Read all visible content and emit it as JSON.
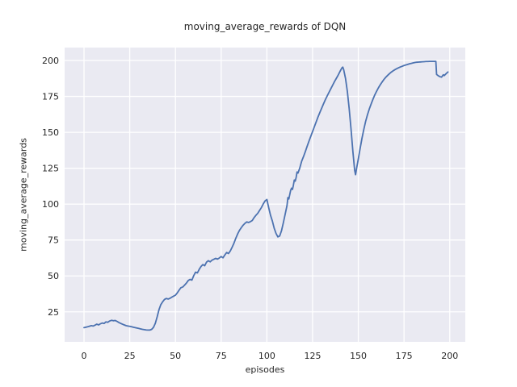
{
  "figure": {
    "title": "moving_average_rewards of DQN",
    "colors": {
      "line": "#4C72B0",
      "plot_background": "#EAEAF2",
      "grid": "#FFFFFF",
      "text": "#262626",
      "figure_background": "#FFFFFF"
    }
  },
  "chart_data": {
    "type": "line",
    "title": "moving_average_rewards of DQN",
    "xlabel": "episodes",
    "ylabel": "moving_average_rewards",
    "xlim": [
      -10.6,
      208.5
    ],
    "ylim": [
      4.1,
      209.0
    ],
    "xticks": [
      0,
      25,
      50,
      75,
      100,
      125,
      150,
      175,
      200
    ],
    "yticks": [
      25,
      50,
      75,
      100,
      125,
      150,
      175,
      200
    ],
    "grid": true,
    "legend_position": "none",
    "series": [
      {
        "name": "moving_average_rewards",
        "color": "#4C72B0",
        "points": [
          [
            0,
            14.0
          ],
          [
            1,
            14.3
          ],
          [
            2,
            14.6
          ],
          [
            3,
            15.0
          ],
          [
            4,
            15.4
          ],
          [
            5,
            15.1
          ],
          [
            6,
            15.7
          ],
          [
            7,
            16.4
          ],
          [
            8,
            15.9
          ],
          [
            9,
            16.7
          ],
          [
            10,
            17.2
          ],
          [
            11,
            16.9
          ],
          [
            12,
            18.0
          ],
          [
            13,
            17.7
          ],
          [
            14,
            18.6
          ],
          [
            15,
            19.1
          ],
          [
            16,
            18.8
          ],
          [
            17,
            19.0
          ],
          [
            18,
            18.4
          ],
          [
            19,
            17.6
          ],
          [
            20,
            17.0
          ],
          [
            21,
            16.4
          ],
          [
            22,
            15.9
          ],
          [
            23,
            15.4
          ],
          [
            24,
            15.1
          ],
          [
            25,
            14.9
          ],
          [
            26,
            14.6
          ],
          [
            27,
            14.3
          ],
          [
            28,
            14.0
          ],
          [
            29,
            13.7
          ],
          [
            30,
            13.4
          ],
          [
            31,
            13.1
          ],
          [
            32,
            12.8
          ],
          [
            33,
            12.6
          ],
          [
            34,
            12.4
          ],
          [
            35,
            12.3
          ],
          [
            36,
            12.3
          ],
          [
            37,
            12.8
          ],
          [
            38,
            14.2
          ],
          [
            39,
            17.0
          ],
          [
            40,
            21.5
          ],
          [
            41,
            26.5
          ],
          [
            42,
            30.0
          ],
          [
            43,
            32.0
          ],
          [
            44,
            33.6
          ],
          [
            45,
            34.3
          ],
          [
            46,
            33.9
          ],
          [
            47,
            34.4
          ],
          [
            48,
            35.2
          ],
          [
            49,
            35.9
          ],
          [
            50,
            36.6
          ],
          [
            51,
            38.2
          ],
          [
            52,
            40.1
          ],
          [
            53,
            41.8
          ],
          [
            54,
            42.3
          ],
          [
            55,
            43.6
          ],
          [
            56,
            45.0
          ],
          [
            57,
            46.8
          ],
          [
            58,
            47.6
          ],
          [
            59,
            47.1
          ],
          [
            60,
            50.2
          ],
          [
            61,
            52.6
          ],
          [
            62,
            52.1
          ],
          [
            63,
            54.6
          ],
          [
            64,
            56.6
          ],
          [
            65,
            57.9
          ],
          [
            66,
            57.1
          ],
          [
            67,
            59.6
          ],
          [
            68,
            60.6
          ],
          [
            69,
            59.8
          ],
          [
            70,
            61.0
          ],
          [
            71,
            61.6
          ],
          [
            72,
            62.2
          ],
          [
            73,
            61.7
          ],
          [
            74,
            62.5
          ],
          [
            75,
            63.5
          ],
          [
            76,
            62.6
          ],
          [
            77,
            64.6
          ],
          [
            78,
            66.3
          ],
          [
            79,
            65.6
          ],
          [
            80,
            67.4
          ],
          [
            81,
            70.0
          ],
          [
            82,
            72.8
          ],
          [
            83,
            76.2
          ],
          [
            84,
            79.2
          ],
          [
            85,
            81.7
          ],
          [
            86,
            83.6
          ],
          [
            87,
            85.3
          ],
          [
            88,
            86.6
          ],
          [
            89,
            87.6
          ],
          [
            90,
            87.2
          ],
          [
            91,
            87.8
          ],
          [
            92,
            88.6
          ],
          [
            93,
            90.6
          ],
          [
            94,
            92.2
          ],
          [
            95,
            93.6
          ],
          [
            96,
            95.6
          ],
          [
            97,
            97.6
          ],
          [
            98,
            100.1
          ],
          [
            99,
            102.2
          ],
          [
            100,
            103.2
          ],
          [
            101,
            97.5
          ],
          [
            102,
            92.2
          ],
          [
            103,
            88.2
          ],
          [
            104,
            83.2
          ],
          [
            105,
            79.6
          ],
          [
            106,
            77.2
          ],
          [
            107,
            77.8
          ],
          [
            108,
            81.5
          ],
          [
            109,
            87.0
          ],
          [
            110,
            93.0
          ],
          [
            111,
            99.0
          ],
          [
            111.5,
            104.6
          ],
          [
            112,
            103.6
          ],
          [
            112.5,
            106.6
          ],
          [
            113,
            109.6
          ],
          [
            113.5,
            111.1
          ],
          [
            114,
            110.2
          ],
          [
            114.5,
            113.2
          ],
          [
            115,
            116.8
          ],
          [
            115.5,
            116.0
          ],
          [
            116,
            118.6
          ],
          [
            116.5,
            122.4
          ],
          [
            117,
            121.6
          ],
          [
            118,
            125.2
          ],
          [
            119,
            129.8
          ],
          [
            120,
            133.0
          ],
          [
            121,
            136.5
          ],
          [
            122,
            140.2
          ],
          [
            123,
            143.8
          ],
          [
            124,
            147.2
          ],
          [
            125,
            150.6
          ],
          [
            126,
            154.0
          ],
          [
            127,
            157.4
          ],
          [
            128,
            160.8
          ],
          [
            129,
            163.9
          ],
          [
            130,
            166.9
          ],
          [
            131,
            169.9
          ],
          [
            132,
            172.8
          ],
          [
            133,
            175.4
          ],
          [
            134,
            177.9
          ],
          [
            135,
            180.4
          ],
          [
            136,
            182.9
          ],
          [
            137,
            185.4
          ],
          [
            138,
            187.6
          ],
          [
            139,
            189.9
          ],
          [
            140,
            192.4
          ],
          [
            141,
            194.8
          ],
          [
            141.5,
            195.4
          ],
          [
            142,
            193.6
          ],
          [
            143,
            187.5
          ],
          [
            144,
            178.5
          ],
          [
            145,
            166.5
          ],
          [
            146,
            152.5
          ],
          [
            147,
            137.0
          ],
          [
            148,
            123.5
          ],
          [
            148.5,
            120.5
          ],
          [
            149,
            124.5
          ],
          [
            150,
            131.5
          ],
          [
            151,
            138.8
          ],
          [
            152,
            145.8
          ],
          [
            153,
            152.0
          ],
          [
            154,
            157.6
          ],
          [
            155,
            162.2
          ],
          [
            156,
            166.2
          ],
          [
            157,
            169.7
          ],
          [
            158,
            173.0
          ],
          [
            159,
            176.0
          ],
          [
            160,
            178.6
          ],
          [
            161,
            181.0
          ],
          [
            162,
            183.1
          ],
          [
            163,
            185.0
          ],
          [
            164,
            186.8
          ],
          [
            165,
            188.3
          ],
          [
            166,
            189.6
          ],
          [
            167,
            190.8
          ],
          [
            168,
            191.9
          ],
          [
            169,
            192.8
          ],
          [
            170,
            193.6
          ],
          [
            171,
            194.3
          ],
          [
            172,
            194.9
          ],
          [
            173,
            195.5
          ],
          [
            174,
            196.0
          ],
          [
            175,
            196.5
          ],
          [
            176,
            196.9
          ],
          [
            177,
            197.3
          ],
          [
            178,
            197.7
          ],
          [
            179,
            198.0
          ],
          [
            180,
            198.3
          ],
          [
            181,
            198.6
          ],
          [
            182,
            198.8
          ],
          [
            183,
            198.9
          ],
          [
            184,
            199.0
          ],
          [
            185,
            199.1
          ],
          [
            186,
            199.2
          ],
          [
            187,
            199.3
          ],
          [
            188,
            199.3
          ],
          [
            189,
            199.4
          ],
          [
            190,
            199.4
          ],
          [
            191,
            199.4
          ],
          [
            192,
            199.4
          ],
          [
            192.4,
            199.4
          ],
          [
            192.8,
            190.3
          ],
          [
            193.5,
            189.6
          ],
          [
            194.5,
            188.8
          ],
          [
            195.5,
            188.4
          ],
          [
            196.5,
            190.1
          ],
          [
            197,
            189.5
          ],
          [
            198,
            190.8
          ],
          [
            199,
            192.0
          ]
        ]
      }
    ]
  }
}
